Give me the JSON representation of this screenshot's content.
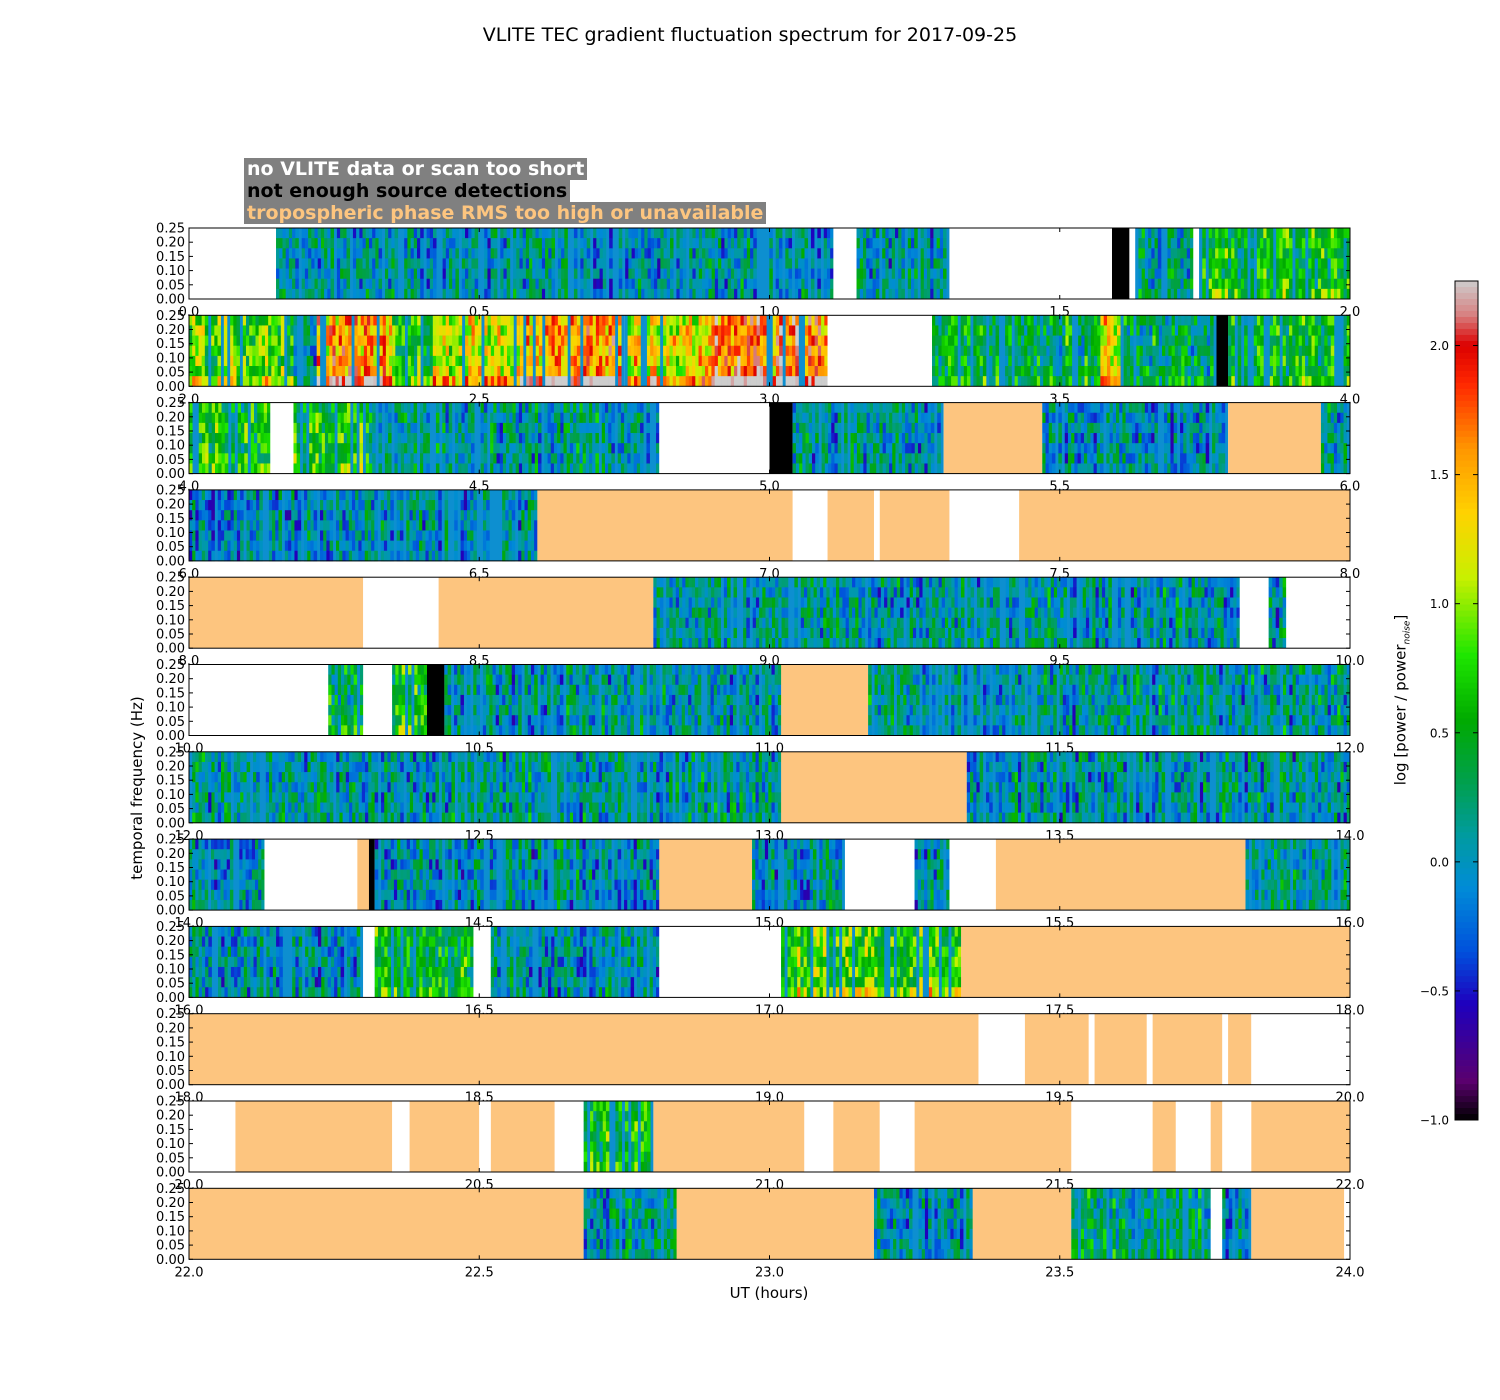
{
  "colors": {
    "no_data": "#ffffff",
    "few_detections": "#000000",
    "tropo": "#fdc57f",
    "baseline": "#0d8fd0",
    "legend_bg": "#808080"
  },
  "chart_data": {
    "type": "heatmap",
    "title": "VLITE TEC gradient fluctuation spectrum for 2017-09-25",
    "xlabel": "UT (hours)",
    "ylabel": "temporal frequency (Hz)",
    "colorbar_label": "log [power / power",
    "colorbar_subscript": "noise",
    "colorbar_close": "]",
    "colorbar_range": [
      -1.0,
      2.25
    ],
    "colorbar_ticks": [
      "2.0",
      "1.5",
      "1.0",
      "0.5",
      "0.0",
      "−0.5",
      "−1.0"
    ],
    "colorbar_tick_values": [
      2.0,
      1.5,
      1.0,
      0.5,
      0.0,
      -0.5,
      -1.0
    ],
    "y_range": [
      0.0,
      0.25
    ],
    "y_ticks": [
      "0.00",
      "0.05",
      "0.10",
      "0.15",
      "0.20",
      "0.25"
    ],
    "legend": [
      {
        "label": "no VLITE data or scan too short",
        "category": "no_data"
      },
      {
        "label": "not enough source detections",
        "category": "few_detections"
      },
      {
        "label": "tropospheric phase RMS too high or unavailable",
        "category": "tropo"
      }
    ],
    "panels": [
      {
        "xlim": [
          0,
          2
        ],
        "xticks": [
          "0.0",
          "0.5",
          "1.0",
          "1.5",
          "2.0"
        ],
        "segments": [
          [
            "none",
            0,
            0.15
          ],
          [
            "data",
            0.15,
            1.11,
            0.05
          ],
          [
            "none",
            1.11,
            1.15
          ],
          [
            "data",
            1.15,
            1.31,
            0.05
          ],
          [
            "none",
            1.31,
            1.59
          ],
          [
            "black",
            1.59,
            1.62
          ],
          [
            "none",
            1.62,
            1.63
          ],
          [
            "data",
            1.63,
            1.73,
            0.15
          ],
          [
            "none",
            1.73,
            1.74
          ],
          [
            "data",
            1.74,
            2.0,
            0.55
          ]
        ]
      },
      {
        "xlim": [
          2,
          4
        ],
        "xticks": [
          "2.0",
          "2.5",
          "3.0",
          "3.5",
          "4.0"
        ],
        "segments": [
          [
            "data",
            2.0,
            2.18,
            0.8
          ],
          [
            "data",
            2.18,
            2.22,
            0.0
          ],
          [
            "data",
            2.22,
            2.35,
            1.5
          ],
          [
            "data",
            2.35,
            2.42,
            0.6
          ],
          [
            "data",
            2.42,
            2.57,
            1.1
          ],
          [
            "data",
            2.57,
            2.75,
            1.6
          ],
          [
            "data",
            2.75,
            2.9,
            1.2
          ],
          [
            "data",
            2.9,
            3.1,
            1.7
          ],
          [
            "none",
            3.1,
            3.28
          ],
          [
            "data",
            3.28,
            3.57,
            0.4
          ],
          [
            "data",
            3.57,
            3.61,
            1.3
          ],
          [
            "data",
            3.61,
            3.77,
            0.3
          ],
          [
            "black",
            3.77,
            3.79
          ],
          [
            "data",
            3.79,
            4.0,
            0.5
          ]
        ]
      },
      {
        "xlim": [
          4,
          6
        ],
        "xticks": [
          "4.0",
          "4.5",
          "5.0",
          "5.5",
          "6.0"
        ],
        "segments": [
          [
            "data",
            4.0,
            4.14,
            0.6
          ],
          [
            "none",
            4.14,
            4.18
          ],
          [
            "data",
            4.18,
            4.31,
            0.6
          ],
          [
            "data",
            4.31,
            4.81,
            0.1
          ],
          [
            "none",
            4.81,
            5.0
          ],
          [
            "black",
            5.0,
            5.04
          ],
          [
            "data",
            5.04,
            5.3,
            0.05
          ],
          [
            "tropo",
            5.3,
            5.47
          ],
          [
            "data",
            5.47,
            5.79,
            -0.05
          ],
          [
            "tropo",
            5.79,
            5.95
          ],
          [
            "data",
            5.95,
            6.0,
            0.1
          ]
        ]
      },
      {
        "xlim": [
          6,
          8
        ],
        "xticks": [
          "6.0",
          "6.5",
          "7.0",
          "7.5",
          "8.0"
        ],
        "segments": [
          [
            "data",
            6.0,
            6.6,
            0.0
          ],
          [
            "tropo",
            6.6,
            7.04
          ],
          [
            "none",
            7.04,
            7.1
          ],
          [
            "tropo",
            7.1,
            7.18
          ],
          [
            "none",
            7.18,
            7.19
          ],
          [
            "tropo",
            7.19,
            7.31
          ],
          [
            "none",
            7.31,
            7.43
          ],
          [
            "tropo",
            7.43,
            8.0
          ]
        ]
      },
      {
        "xlim": [
          8,
          10
        ],
        "xticks": [
          "8.0",
          "8.5",
          "9.0",
          "9.5",
          "10.0"
        ],
        "segments": [
          [
            "tropo",
            8.0,
            8.3
          ],
          [
            "none",
            8.3,
            8.43
          ],
          [
            "tropo",
            8.43,
            8.8
          ],
          [
            "data",
            8.8,
            9.81,
            0.05
          ],
          [
            "none",
            9.81,
            9.86
          ],
          [
            "data",
            9.86,
            9.89,
            0.0
          ],
          [
            "none",
            9.89,
            10.0
          ]
        ]
      },
      {
        "xlim": [
          10,
          12
        ],
        "xticks": [
          "10.0",
          "10.5",
          "11.0",
          "11.5",
          "12.0"
        ],
        "segments": [
          [
            "none",
            10.0,
            10.24
          ],
          [
            "data",
            10.24,
            10.3,
            0.3
          ],
          [
            "none",
            10.3,
            10.35
          ],
          [
            "data",
            10.35,
            10.41,
            0.6
          ],
          [
            "black",
            10.41,
            10.44
          ],
          [
            "data",
            10.44,
            11.02,
            0.05
          ],
          [
            "tropo",
            11.02,
            11.17
          ],
          [
            "data",
            11.17,
            12.0,
            0.1
          ]
        ]
      },
      {
        "xlim": [
          12,
          14
        ],
        "xticks": [
          "12.0",
          "12.5",
          "13.0",
          "13.5",
          "14.0"
        ],
        "segments": [
          [
            "data",
            12.0,
            13.02,
            0.1
          ],
          [
            "tropo",
            13.02,
            13.34
          ],
          [
            "data",
            13.34,
            14.0,
            0.05
          ]
        ]
      },
      {
        "xlim": [
          14,
          16
        ],
        "xticks": [
          "14.0",
          "14.5",
          "15.0",
          "15.5",
          "16.0"
        ],
        "segments": [
          [
            "data",
            14.0,
            14.13,
            0.0
          ],
          [
            "none",
            14.13,
            14.29
          ],
          [
            "tropo",
            14.29,
            14.31
          ],
          [
            "black",
            14.31,
            14.32
          ],
          [
            "data",
            14.32,
            14.81,
            0.0
          ],
          [
            "tropo",
            14.81,
            14.97
          ],
          [
            "data",
            14.97,
            15.13,
            0.0
          ],
          [
            "none",
            15.13,
            15.25
          ],
          [
            "data",
            15.25,
            15.31,
            0.0
          ],
          [
            "none",
            15.31,
            15.39
          ],
          [
            "tropo",
            15.39,
            15.82
          ],
          [
            "data",
            15.82,
            16.0,
            0.1
          ]
        ]
      },
      {
        "xlim": [
          16,
          18
        ],
        "xticks": [
          "16.0",
          "16.5",
          "17.0",
          "17.5",
          "18.0"
        ],
        "segments": [
          [
            "data",
            16.0,
            16.3,
            0.0
          ],
          [
            "none",
            16.3,
            16.32
          ],
          [
            "data",
            16.32,
            16.49,
            0.5
          ],
          [
            "none",
            16.49,
            16.52
          ],
          [
            "data",
            16.52,
            16.81,
            0.0
          ],
          [
            "none",
            16.81,
            17.02
          ],
          [
            "data",
            17.02,
            17.33,
            0.8
          ],
          [
            "tropo",
            17.33,
            18.0
          ]
        ]
      },
      {
        "xlim": [
          18,
          20
        ],
        "xticks": [
          "18.0",
          "18.5",
          "19.0",
          "19.5",
          "20.0"
        ],
        "segments": [
          [
            "tropo",
            18.0,
            19.36
          ],
          [
            "none",
            19.36,
            19.44
          ],
          [
            "tropo",
            19.44,
            19.55
          ],
          [
            "none",
            19.55,
            19.56
          ],
          [
            "tropo",
            19.56,
            19.65
          ],
          [
            "none",
            19.65,
            19.66
          ],
          [
            "tropo",
            19.66,
            19.78
          ],
          [
            "none",
            19.78,
            19.79
          ],
          [
            "tropo",
            19.79,
            19.83
          ],
          [
            "none",
            19.83,
            20.0
          ]
        ]
      },
      {
        "xlim": [
          20,
          22
        ],
        "xticks": [
          "20.0",
          "20.5",
          "21.0",
          "21.5",
          "22.0"
        ],
        "segments": [
          [
            "none",
            20.0,
            20.08
          ],
          [
            "tropo",
            20.08,
            20.35
          ],
          [
            "none",
            20.35,
            20.38
          ],
          [
            "tropo",
            20.38,
            20.5
          ],
          [
            "none",
            20.5,
            20.52
          ],
          [
            "tropo",
            20.52,
            20.63
          ],
          [
            "none",
            20.63,
            20.68
          ],
          [
            "data",
            20.68,
            20.8,
            0.6
          ],
          [
            "tropo",
            20.8,
            21.06
          ],
          [
            "none",
            21.06,
            21.11
          ],
          [
            "tropo",
            21.11,
            21.19
          ],
          [
            "none",
            21.19,
            21.25
          ],
          [
            "tropo",
            21.25,
            21.52
          ],
          [
            "none",
            21.52,
            21.66
          ],
          [
            "tropo",
            21.66,
            21.7
          ],
          [
            "none",
            21.7,
            21.76
          ],
          [
            "tropo",
            21.76,
            21.78
          ],
          [
            "none",
            21.78,
            21.83
          ],
          [
            "tropo",
            21.83,
            22.0
          ]
        ]
      },
      {
        "xlim": [
          22,
          24
        ],
        "xticks": [
          "22.0",
          "22.5",
          "23.0",
          "23.5",
          "24.0"
        ],
        "segments": [
          [
            "tropo",
            22.0,
            22.68
          ],
          [
            "data",
            22.68,
            22.84,
            0.1
          ],
          [
            "tropo",
            22.84,
            23.18
          ],
          [
            "data",
            23.18,
            23.35,
            0.0
          ],
          [
            "tropo",
            23.35,
            23.52
          ],
          [
            "data",
            23.52,
            23.76,
            0.3
          ],
          [
            "none",
            23.76,
            23.78
          ],
          [
            "data",
            23.78,
            23.83,
            0.0
          ],
          [
            "tropo",
            23.83,
            23.99
          ],
          [
            "none",
            23.99,
            24.0
          ]
        ]
      }
    ]
  }
}
